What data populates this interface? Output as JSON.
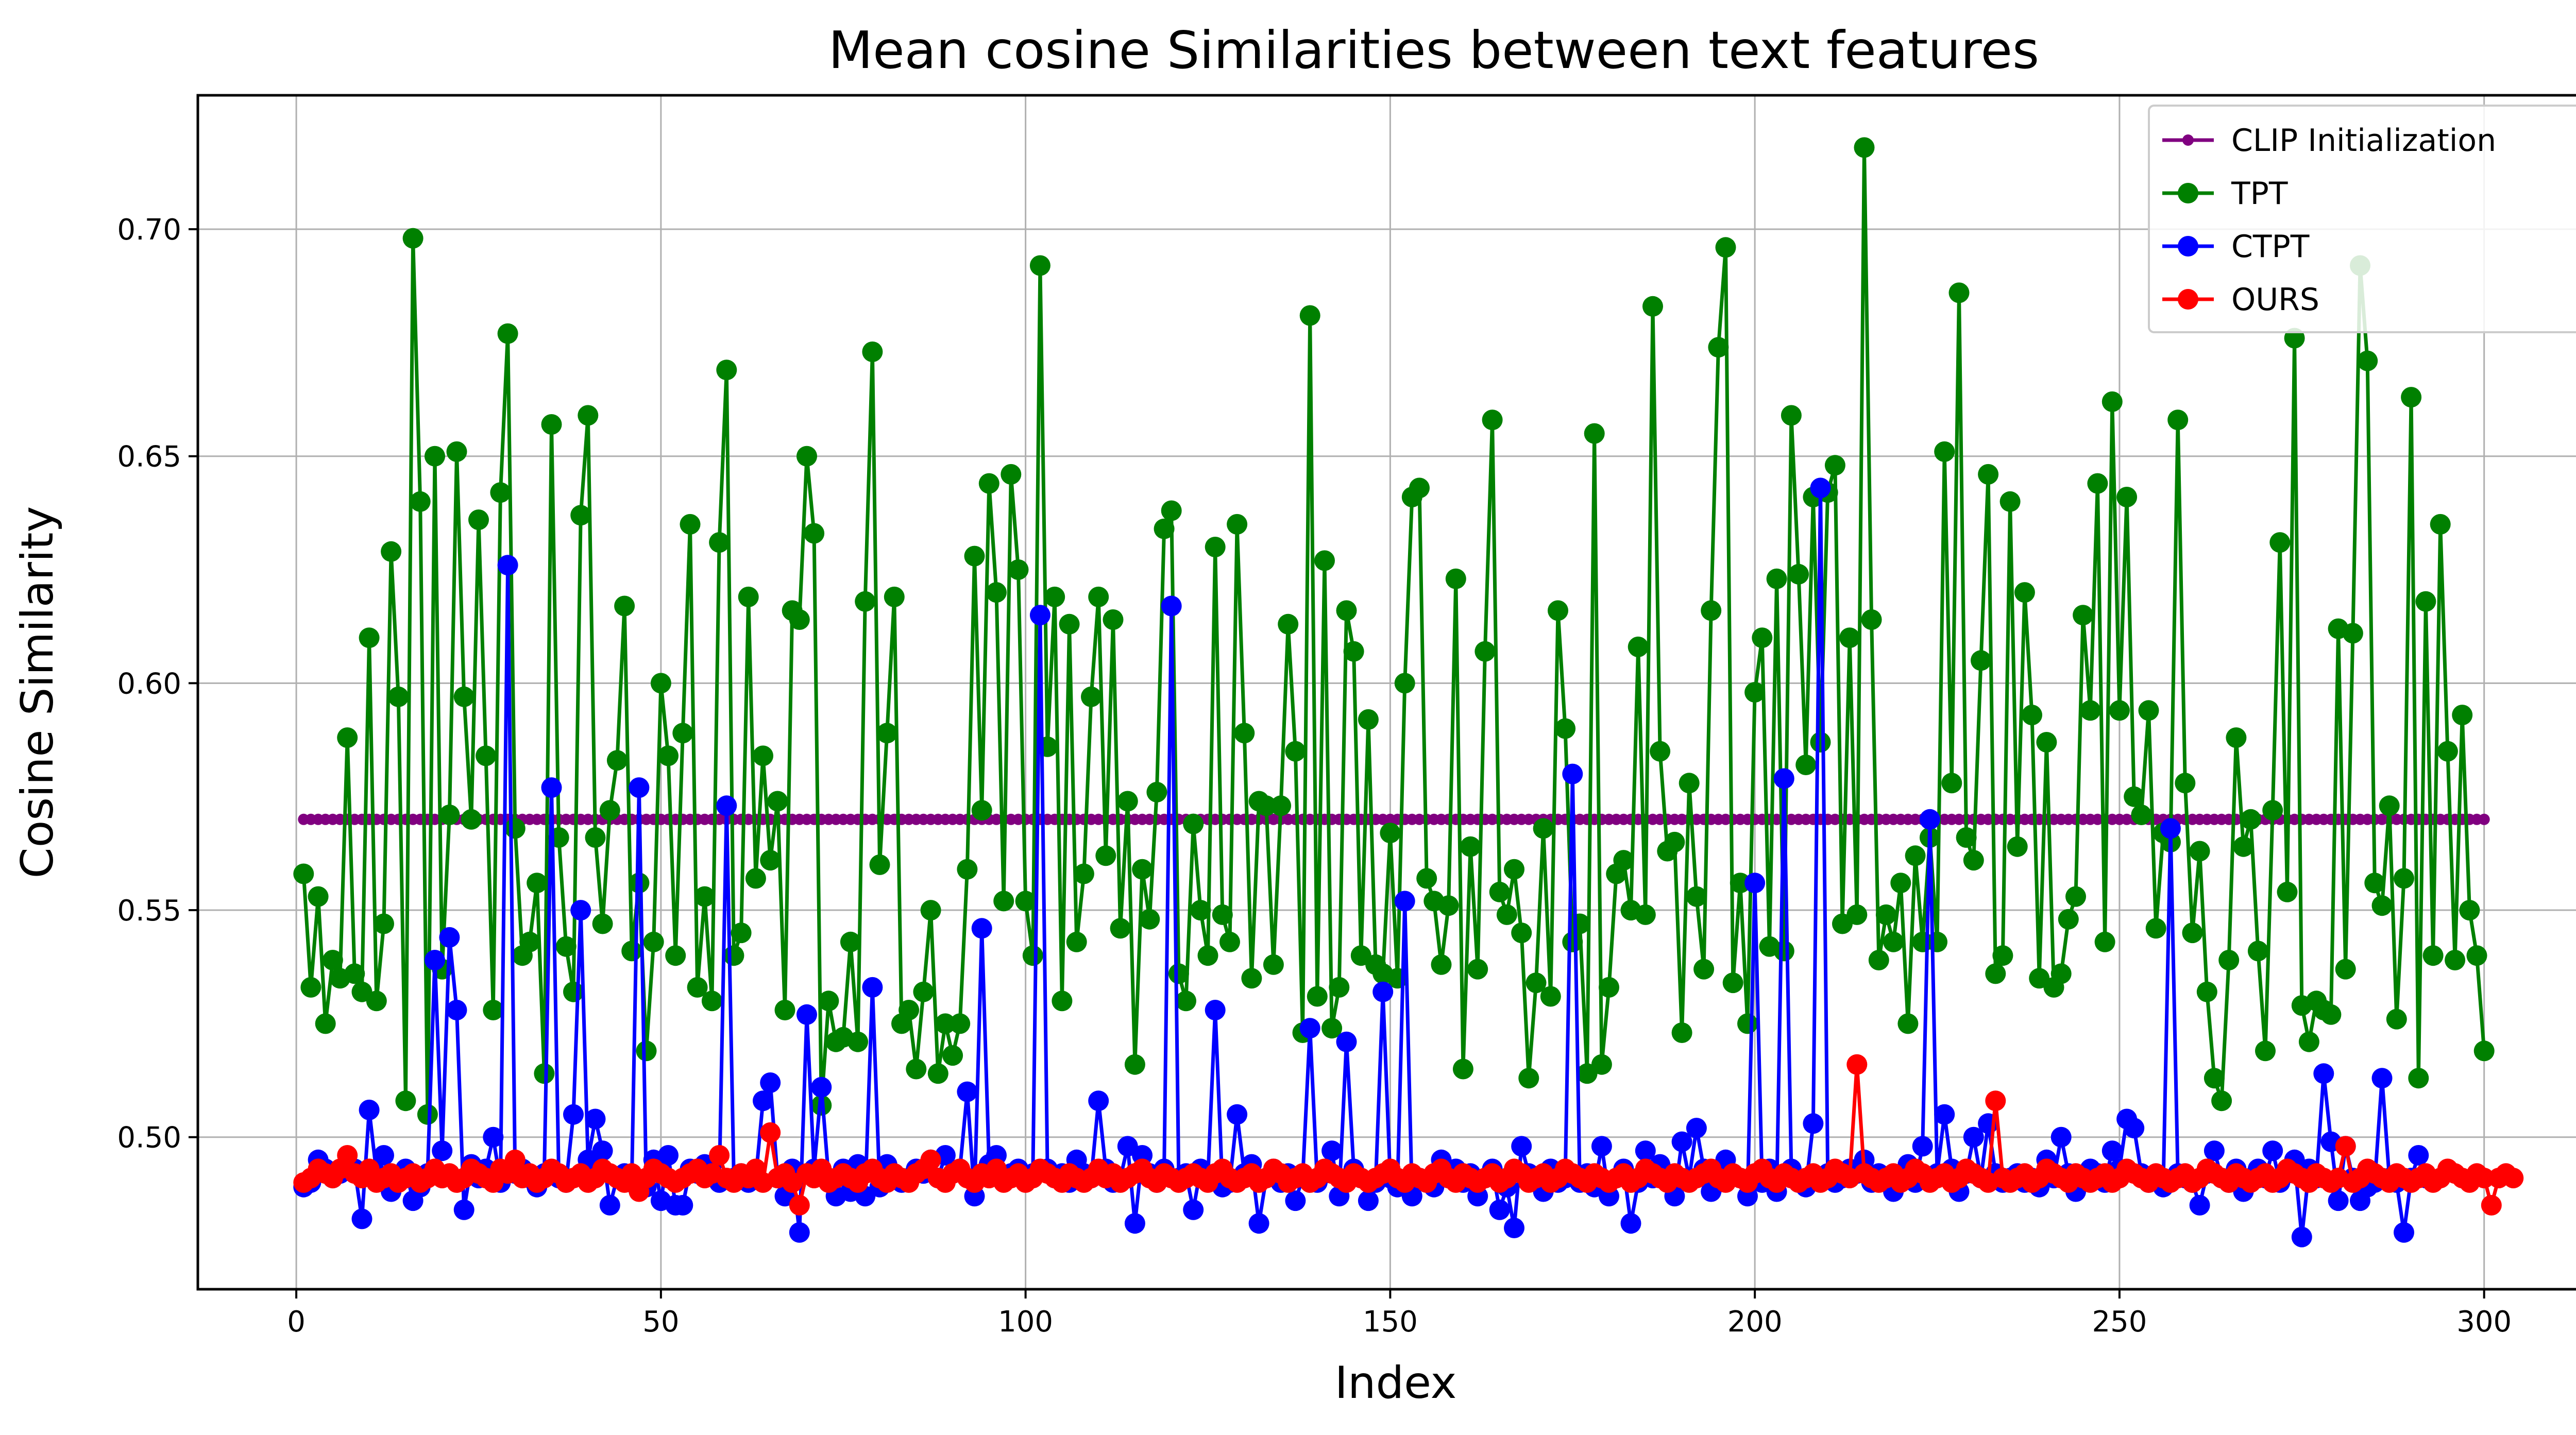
{
  "chart_data": {
    "type": "line",
    "title": "Mean cosine Similarities between text features",
    "xlabel": "Index",
    "ylabel": "Cosine Similarity",
    "xlim": [
      -13.5,
      315
    ],
    "ylim": [
      0.4665,
      0.7295
    ],
    "xticks": [
      0,
      50,
      100,
      150,
      200,
      250,
      300
    ],
    "yticks": [
      0.5,
      0.55,
      0.6,
      0.65,
      0.7
    ],
    "ytick_labels": [
      "0.50",
      "0.55",
      "0.60",
      "0.65",
      "0.70"
    ],
    "grid": true,
    "legend_position": "top-right",
    "series": [
      {
        "name": "CLIP Initialization",
        "color": "#800080",
        "marker": "small",
        "x_start": 1,
        "x_end": 300,
        "constant_value": 0.57
      },
      {
        "name": "TPT",
        "color": "#008000",
        "marker": "large",
        "x_start": 1,
        "values": [
          0.558,
          0.533,
          0.553,
          0.525,
          0.539,
          0.535,
          0.588,
          0.536,
          0.532,
          0.61,
          0.53,
          0.547,
          0.629,
          0.597,
          0.508,
          0.698,
          0.64,
          0.505,
          0.65,
          0.537,
          0.571,
          0.651,
          0.597,
          0.57,
          0.636,
          0.584,
          0.528,
          0.642,
          0.677,
          0.568,
          0.54,
          0.543,
          0.556,
          0.514,
          0.657,
          0.566,
          0.542,
          0.532,
          0.637,
          0.659,
          0.566,
          0.547,
          0.572,
          0.583,
          0.617,
          0.541,
          0.556,
          0.519,
          0.543,
          0.6,
          0.584,
          0.54,
          0.589,
          0.635,
          0.533,
          0.553,
          0.53,
          0.631,
          0.669,
          0.54,
          0.545,
          0.619,
          0.557,
          0.584,
          0.561,
          0.574,
          0.528,
          0.616,
          0.614,
          0.65,
          0.633,
          0.507,
          0.53,
          0.521,
          0.522,
          0.543,
          0.521,
          0.618,
          0.673,
          0.56,
          0.589,
          0.619,
          0.525,
          0.528,
          0.515,
          0.532,
          0.55,
          0.514,
          0.525,
          0.518,
          0.525,
          0.559,
          0.628,
          0.572,
          0.644,
          0.62,
          0.552,
          0.646,
          0.625,
          0.552,
          0.54,
          0.692,
          0.586,
          0.619,
          0.53,
          0.613,
          0.543,
          0.558,
          0.597,
          0.619,
          0.562,
          0.614,
          0.546,
          0.574,
          0.516,
          0.559,
          0.548,
          0.576,
          0.634,
          0.638,
          0.536,
          0.53,
          0.569,
          0.55,
          0.54,
          0.63,
          0.549,
          0.543,
          0.635,
          0.589,
          0.535,
          0.574,
          0.573,
          0.538,
          0.573,
          0.613,
          0.585,
          0.523,
          0.681,
          0.531,
          0.627,
          0.524,
          0.533,
          0.616,
          0.607,
          0.54,
          0.592,
          0.538,
          0.536,
          0.567,
          0.535,
          0.6,
          0.641,
          0.643,
          0.557,
          0.552,
          0.538,
          0.551,
          0.623,
          0.515,
          0.564,
          0.537,
          0.607,
          0.658,
          0.554,
          0.549,
          0.559,
          0.545,
          0.513,
          0.534,
          0.568,
          0.531,
          0.616,
          0.59,
          0.543,
          0.547,
          0.514,
          0.655,
          0.516,
          0.533,
          0.558,
          0.561,
          0.55,
          0.608,
          0.549,
          0.683,
          0.585,
          0.563,
          0.565,
          0.523,
          0.578,
          0.553,
          0.537,
          0.616,
          0.674,
          0.696,
          0.534,
          0.556,
          0.525,
          0.598,
          0.61,
          0.542,
          0.623,
          0.541,
          0.659,
          0.624,
          0.582,
          0.641,
          0.587,
          0.642,
          0.648,
          0.547,
          0.61,
          0.549,
          0.718,
          0.614,
          0.539,
          0.549,
          0.543,
          0.556,
          0.525,
          0.562,
          0.543,
          0.566,
          0.543,
          0.651,
          0.578,
          0.686,
          0.566,
          0.561,
          0.605,
          0.646,
          0.536,
          0.54,
          0.64,
          0.564,
          0.62,
          0.593,
          0.535,
          0.587,
          0.533,
          0.536,
          0.548,
          0.553,
          0.615,
          0.594,
          0.644,
          0.543,
          0.662,
          0.594,
          0.641,
          0.575,
          0.571,
          0.594,
          0.546,
          0.567,
          0.565,
          0.658,
          0.578,
          0.545,
          0.563,
          0.532,
          0.513,
          0.508,
          0.539,
          0.588,
          0.564,
          0.57,
          0.541,
          0.519,
          0.572,
          0.631,
          0.554,
          0.676,
          0.529,
          0.521,
          0.53,
          0.528,
          0.527,
          0.612,
          0.537,
          0.611,
          0.692,
          0.671,
          0.556,
          0.551,
          0.573,
          0.526,
          0.557,
          0.663,
          0.513,
          0.618,
          0.54,
          0.635,
          0.585,
          0.539,
          0.593,
          0.55,
          0.54,
          0.519
        ]
      },
      {
        "name": "CTPT",
        "color": "#0000ff",
        "marker": "large",
        "x_start": 1,
        "values": [
          0.489,
          0.49,
          0.495,
          0.493,
          0.491,
          0.492,
          0.494,
          0.493,
          0.482,
          0.506,
          0.492,
          0.496,
          0.488,
          0.491,
          0.493,
          0.486,
          0.489,
          0.492,
          0.539,
          0.497,
          0.544,
          0.528,
          0.484,
          0.494,
          0.491,
          0.493,
          0.5,
          0.49,
          0.626,
          0.492,
          0.493,
          0.491,
          0.489,
          0.492,
          0.577,
          0.491,
          0.49,
          0.505,
          0.55,
          0.495,
          0.504,
          0.497,
          0.485,
          0.491,
          0.492,
          0.49,
          0.577,
          0.489,
          0.495,
          0.486,
          0.496,
          0.485,
          0.485,
          0.493,
          0.492,
          0.494,
          0.492,
          0.49,
          0.573,
          0.491,
          0.492,
          0.49,
          0.491,
          0.508,
          0.512,
          0.491,
          0.487,
          0.493,
          0.479,
          0.527,
          0.493,
          0.511,
          0.491,
          0.487,
          0.493,
          0.488,
          0.494,
          0.487,
          0.533,
          0.489,
          0.494,
          0.492,
          0.49,
          0.491,
          0.493,
          0.492,
          0.495,
          0.491,
          0.496,
          0.492,
          0.493,
          0.51,
          0.487,
          0.546,
          0.494,
          0.496,
          0.491,
          0.492,
          0.493,
          0.491,
          0.492,
          0.615,
          0.493,
          0.491,
          0.492,
          0.49,
          0.495,
          0.492,
          0.491,
          0.508,
          0.493,
          0.49,
          0.491,
          0.498,
          0.481,
          0.496,
          0.492,
          0.49,
          0.493,
          0.617,
          0.491,
          0.492,
          0.484,
          0.493,
          0.491,
          0.528,
          0.489,
          0.49,
          0.505,
          0.492,
          0.494,
          0.481,
          0.491,
          0.493,
          0.49,
          0.492,
          0.486,
          0.491,
          0.524,
          0.49,
          0.492,
          0.497,
          0.487,
          0.521,
          0.493,
          0.491,
          0.486,
          0.49,
          0.532,
          0.491,
          0.489,
          0.552,
          0.487,
          0.491,
          0.49,
          0.489,
          0.495,
          0.491,
          0.493,
          0.49,
          0.492,
          0.487,
          0.491,
          0.493,
          0.484,
          0.489,
          0.48,
          0.498,
          0.492,
          0.491,
          0.488,
          0.493,
          0.49,
          0.491,
          0.58,
          0.49,
          0.492,
          0.489,
          0.498,
          0.487,
          0.491,
          0.493,
          0.481,
          0.49,
          0.497,
          0.491,
          0.494,
          0.492,
          0.487,
          0.499,
          0.491,
          0.502,
          0.493,
          0.488,
          0.49,
          0.495,
          0.492,
          0.491,
          0.487,
          0.556,
          0.49,
          0.493,
          0.488,
          0.579,
          0.493,
          0.49,
          0.489,
          0.503,
          0.643,
          0.492,
          0.49,
          0.491,
          0.493,
          0.492,
          0.495,
          0.49,
          0.492,
          0.491,
          0.488,
          0.491,
          0.494,
          0.49,
          0.498,
          0.57,
          0.492,
          0.505,
          0.493,
          0.488,
          0.492,
          0.5,
          0.491,
          0.503,
          0.492,
          0.49,
          0.491,
          0.492,
          0.49,
          0.491,
          0.489,
          0.495,
          0.491,
          0.5,
          0.492,
          0.488,
          0.491,
          0.493,
          0.492,
          0.49,
          0.497,
          0.493,
          0.504,
          0.502,
          0.492,
          0.49,
          0.491,
          0.489,
          0.568,
          0.492,
          0.491,
          0.49,
          0.485,
          0.492,
          0.497,
          0.491,
          0.49,
          0.493,
          0.488,
          0.491,
          0.493,
          0.491,
          0.497,
          0.49,
          0.492,
          0.495,
          0.478,
          0.493,
          0.491,
          0.514,
          0.499,
          0.486,
          0.498,
          0.491,
          0.486,
          0.489,
          0.49,
          0.513,
          0.491,
          0.49,
          0.479,
          0.491,
          0.496,
          0.491
        ]
      },
      {
        "name": "OURS",
        "color": "#ff0000",
        "marker": "large",
        "x_start": 1,
        "values": [
          0.49,
          0.491,
          0.493,
          0.492,
          0.491,
          0.493,
          0.496,
          0.492,
          0.491,
          0.493,
          0.49,
          0.491,
          0.492,
          0.49,
          0.491,
          0.492,
          0.49,
          0.491,
          0.493,
          0.491,
          0.492,
          0.49,
          0.491,
          0.493,
          0.492,
          0.491,
          0.49,
          0.493,
          0.492,
          0.495,
          0.491,
          0.492,
          0.49,
          0.491,
          0.493,
          0.492,
          0.49,
          0.491,
          0.492,
          0.49,
          0.491,
          0.493,
          0.492,
          0.491,
          0.49,
          0.492,
          0.488,
          0.491,
          0.493,
          0.492,
          0.491,
          0.49,
          0.491,
          0.492,
          0.493,
          0.491,
          0.492,
          0.496,
          0.491,
          0.49,
          0.492,
          0.491,
          0.493,
          0.49,
          0.501,
          0.491,
          0.492,
          0.49,
          0.485,
          0.492,
          0.491,
          0.493,
          0.49,
          0.491,
          0.492,
          0.491,
          0.49,
          0.492,
          0.493,
          0.491,
          0.49,
          0.492,
          0.491,
          0.49,
          0.492,
          0.493,
          0.495,
          0.491,
          0.49,
          0.492,
          0.493,
          0.491,
          0.49,
          0.492,
          0.491,
          0.493,
          0.49,
          0.491,
          0.492,
          0.49,
          0.491,
          0.493,
          0.492,
          0.491,
          0.49,
          0.492,
          0.491,
          0.49,
          0.491,
          0.493,
          0.491,
          0.492,
          0.49,
          0.491,
          0.492,
          0.493,
          0.491,
          0.49,
          0.492,
          0.491,
          0.49,
          0.491,
          0.492,
          0.491,
          0.49,
          0.492,
          0.493,
          0.491,
          0.49,
          0.491,
          0.492,
          0.49,
          0.491,
          0.493,
          0.492,
          0.49,
          0.491,
          0.492,
          0.49,
          0.491,
          0.493,
          0.492,
          0.491,
          0.49,
          0.492,
          0.491,
          0.49,
          0.491,
          0.492,
          0.493,
          0.491,
          0.49,
          0.492,
          0.491,
          0.49,
          0.492,
          0.493,
          0.491,
          0.49,
          0.492,
          0.491,
          0.49,
          0.491,
          0.492,
          0.49,
          0.491,
          0.493,
          0.492,
          0.49,
          0.491,
          0.492,
          0.49,
          0.491,
          0.493,
          0.492,
          0.491,
          0.49,
          0.492,
          0.491,
          0.49,
          0.491,
          0.492,
          0.49,
          0.491,
          0.493,
          0.492,
          0.491,
          0.49,
          0.492,
          0.491,
          0.49,
          0.491,
          0.492,
          0.493,
          0.491,
          0.49,
          0.492,
          0.491,
          0.49,
          0.492,
          0.493,
          0.491,
          0.49,
          0.492,
          0.491,
          0.49,
          0.491,
          0.492,
          0.49,
          0.491,
          0.493,
          0.492,
          0.491,
          0.516,
          0.492,
          0.491,
          0.49,
          0.491,
          0.492,
          0.49,
          0.491,
          0.493,
          0.492,
          0.49,
          0.491,
          0.492,
          0.49,
          0.491,
          0.493,
          0.492,
          0.491,
          0.49,
          0.508,
          0.491,
          0.49,
          0.491,
          0.492,
          0.49,
          0.491,
          0.493,
          0.492,
          0.491,
          0.49,
          0.492,
          0.491,
          0.49,
          0.491,
          0.492,
          0.49,
          0.491,
          0.493,
          0.492,
          0.491,
          0.49,
          0.492,
          0.491,
          0.49,
          0.491,
          0.492,
          0.49,
          0.491,
          0.493,
          0.492,
          0.491,
          0.49,
          0.492,
          0.491,
          0.49,
          0.491,
          0.492,
          0.49,
          0.491,
          0.493,
          0.492,
          0.491,
          0.49,
          0.492,
          0.491,
          0.49,
          0.491,
          0.498,
          0.49,
          0.491,
          0.493,
          0.492,
          0.491,
          0.49,
          0.492,
          0.491,
          0.49,
          0.491,
          0.492,
          0.49,
          0.491,
          0.493,
          0.492,
          0.491,
          0.49,
          0.492,
          0.491,
          0.485,
          0.491,
          0.492,
          0.491
        ]
      }
    ]
  }
}
